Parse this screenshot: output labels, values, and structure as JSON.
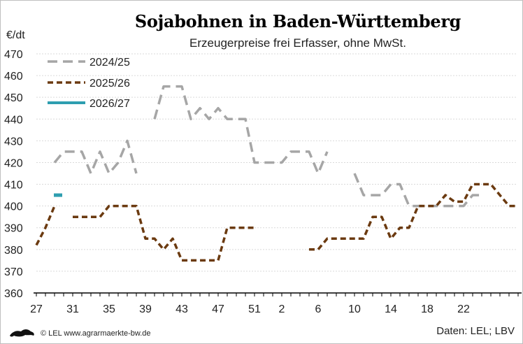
{
  "chart_data": {
    "type": "line",
    "title": "Sojabohnen in Baden-Württemberg",
    "subtitle": "Erzeugerpreise frei Erfasser, ohne MwSt.",
    "ylabel": "€/dt",
    "ylim": [
      360,
      470
    ],
    "yticks": [
      360,
      370,
      380,
      390,
      400,
      410,
      420,
      430,
      440,
      450,
      460,
      470
    ],
    "x_tick_labels": [
      "27",
      "31",
      "35",
      "39",
      "43",
      "47",
      "51",
      "2",
      "6",
      "10",
      "14",
      "18",
      "22"
    ],
    "x_tick_index": [
      0,
      4,
      8,
      12,
      16,
      20,
      24,
      27,
      31,
      35,
      39,
      43,
      47
    ],
    "grid": true,
    "legend_position": "top-left",
    "series": [
      {
        "name": "2024/25",
        "color": "#a6a6a6",
        "style": "dashed",
        "values": [
          null,
          null,
          420,
          425,
          425,
          425,
          415,
          425,
          415,
          420,
          430,
          415,
          null,
          440,
          455,
          455,
          455,
          440,
          445,
          440,
          445,
          440,
          440,
          440,
          420,
          420,
          420,
          420,
          425,
          425,
          425,
          415,
          425,
          null,
          null,
          415,
          405,
          405,
          405,
          410,
          410,
          400,
          400,
          400,
          400,
          400,
          400,
          400,
          405,
          405
        ]
      },
      {
        "name": "2025/26",
        "color": "#6b3a10",
        "style": "dashed",
        "values": [
          382,
          390,
          400,
          null,
          395,
          395,
          395,
          395,
          400,
          400,
          400,
          400,
          385,
          385,
          380,
          385,
          375,
          375,
          375,
          375,
          375,
          390,
          390,
          390,
          390,
          null,
          null,
          null,
          null,
          null,
          380,
          380,
          385,
          385,
          385,
          385,
          385,
          395,
          395,
          385,
          390,
          390,
          400,
          400,
          400,
          405,
          402,
          402,
          410,
          410,
          410,
          405,
          400,
          400
        ]
      },
      {
        "name": "2026/27",
        "color": "#2e9eb0",
        "style": "solid",
        "values": [
          null,
          null,
          405
        ]
      }
    ]
  },
  "footer": {
    "copyright": "© LEL www.agrarmaerkte-bw.de",
    "source": "Daten: LEL; LBV"
  }
}
